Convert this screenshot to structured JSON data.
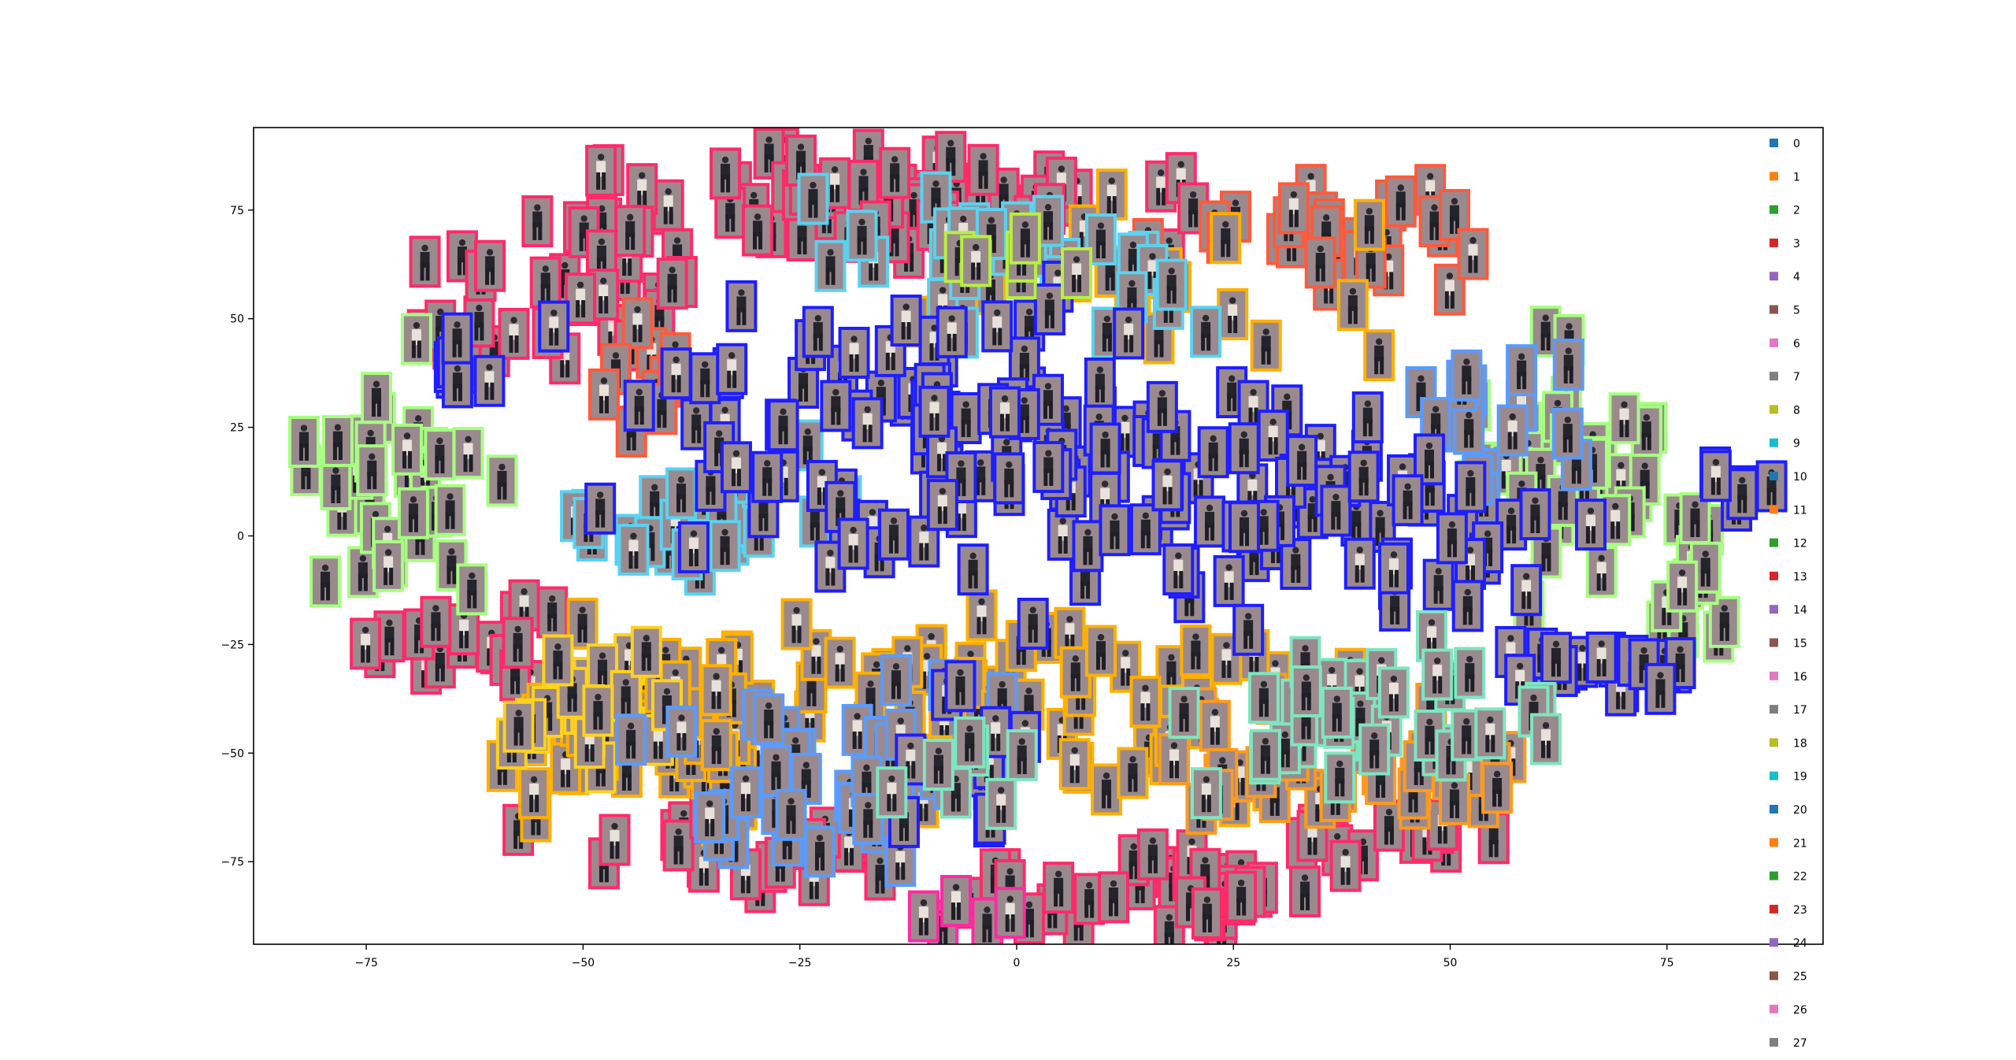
{
  "chart_data": {
    "type": "scatter",
    "title": "",
    "xlabel": "",
    "ylabel": "",
    "xlim": [
      -88,
      93
    ],
    "ylim": [
      -94,
      94
    ],
    "xticks": [
      -75,
      -50,
      -25,
      0,
      25,
      50,
      75
    ],
    "yticks": [
      -75,
      -50,
      -25,
      0,
      25,
      50,
      75
    ],
    "xtick_labels": [
      "−75",
      "−50",
      "−25",
      "0",
      "25",
      "50",
      "75"
    ],
    "ytick_labels": [
      "−75",
      "−50",
      "−25",
      "0",
      "25",
      "50",
      "75"
    ],
    "grid": false,
    "legend_position": "right",
    "legend": [
      {
        "label": "0",
        "color": "#1f77b4"
      },
      {
        "label": "1",
        "color": "#ff7f0e"
      },
      {
        "label": "2",
        "color": "#2ca02c"
      },
      {
        "label": "3",
        "color": "#d62728"
      },
      {
        "label": "4",
        "color": "#9467bd"
      },
      {
        "label": "5",
        "color": "#8c564b"
      },
      {
        "label": "6",
        "color": "#e377c2"
      },
      {
        "label": "7",
        "color": "#7f7f7f"
      },
      {
        "label": "8",
        "color": "#bcbd22"
      },
      {
        "label": "9",
        "color": "#17becf"
      },
      {
        "label": "10",
        "color": "#1f77b4"
      },
      {
        "label": "11",
        "color": "#ff7f0e"
      },
      {
        "label": "12",
        "color": "#2ca02c"
      },
      {
        "label": "13",
        "color": "#d62728"
      },
      {
        "label": "14",
        "color": "#9467bd"
      },
      {
        "label": "15",
        "color": "#8c564b"
      },
      {
        "label": "16",
        "color": "#e377c2"
      },
      {
        "label": "17",
        "color": "#7f7f7f"
      },
      {
        "label": "18",
        "color": "#bcbd22"
      },
      {
        "label": "19",
        "color": "#17becf"
      },
      {
        "label": "20",
        "color": "#1f77b4"
      },
      {
        "label": "21",
        "color": "#ff7f0e"
      },
      {
        "label": "22",
        "color": "#2ca02c"
      },
      {
        "label": "23",
        "color": "#d62728"
      },
      {
        "label": "24",
        "color": "#9467bd"
      },
      {
        "label": "25",
        "color": "#8c564b"
      },
      {
        "label": "26",
        "color": "#e377c2"
      },
      {
        "label": "27",
        "color": "#7f7f7f"
      }
    ],
    "clusters": [
      {
        "color": "#ff2a6a",
        "center": [
          -12,
          76
        ],
        "spread": [
          26,
          10
        ],
        "count": 70
      },
      {
        "color": "#ff2a6a",
        "center": [
          -46,
          52
        ],
        "spread": [
          8,
          18
        ],
        "count": 24
      },
      {
        "color": "#ff2a6a",
        "center": [
          -63,
          -24
        ],
        "spread": [
          8,
          8
        ],
        "count": 18
      },
      {
        "color": "#ff2a6a",
        "center": [
          -35,
          -70
        ],
        "spread": [
          14,
          8
        ],
        "count": 22
      },
      {
        "color": "#ff2a6a",
        "center": [
          20,
          -80
        ],
        "spread": [
          12,
          8
        ],
        "count": 26
      },
      {
        "color": "#ff2a6a",
        "center": [
          45,
          -70
        ],
        "spread": [
          12,
          8
        ],
        "count": 18
      },
      {
        "color": "#ff2a6a",
        "center": [
          2,
          -82
        ],
        "spread": [
          8,
          6
        ],
        "count": 10
      },
      {
        "color": "#ff2a6a",
        "center": [
          -62,
          52
        ],
        "spread": [
          8,
          16
        ],
        "count": 12
      },
      {
        "color": "#ff5a3c",
        "center": [
          37,
          70
        ],
        "spread": [
          14,
          10
        ],
        "count": 28
      },
      {
        "color": "#ff5a3c",
        "center": [
          -42,
          35
        ],
        "spread": [
          5,
          10
        ],
        "count": 10
      },
      {
        "color": "#a6ff80",
        "center": [
          -72,
          12
        ],
        "spread": [
          9,
          22
        ],
        "count": 34
      },
      {
        "color": "#a6ff80",
        "center": [
          62,
          20
        ],
        "spread": [
          10,
          28
        ],
        "count": 36
      },
      {
        "color": "#a6ff80",
        "center": [
          78,
          -10
        ],
        "spread": [
          6,
          14
        ],
        "count": 14
      },
      {
        "color": "#ffb000",
        "center": [
          -45,
          -45
        ],
        "spread": [
          14,
          18
        ],
        "count": 60
      },
      {
        "color": "#ffb000",
        "center": [
          0,
          -40
        ],
        "spread": [
          28,
          18
        ],
        "count": 70
      },
      {
        "color": "#ffb000",
        "center": [
          15,
          60
        ],
        "spread": [
          25,
          15
        ],
        "count": 22
      },
      {
        "color": "#ffd21e",
        "center": [
          -50,
          -40
        ],
        "spread": [
          8,
          12
        ],
        "count": 22
      },
      {
        "color": "#ff9a1e",
        "center": [
          30,
          -55
        ],
        "spread": [
          12,
          12
        ],
        "count": 22
      },
      {
        "color": "#ff9a1e",
        "center": [
          50,
          -55
        ],
        "spread": [
          8,
          10
        ],
        "count": 14
      },
      {
        "color": "#5a9bff",
        "center": [
          -20,
          -55
        ],
        "spread": [
          16,
          15
        ],
        "count": 40
      },
      {
        "color": "#5a9bff",
        "center": [
          55,
          30
        ],
        "spread": [
          8,
          15
        ],
        "count": 16
      },
      {
        "color": "#5ad2f0",
        "center": [
          -35,
          5
        ],
        "spread": [
          14,
          10
        ],
        "count": 30
      },
      {
        "color": "#5ad2f0",
        "center": [
          0,
          65
        ],
        "spread": [
          20,
          12
        ],
        "count": 28
      },
      {
        "color": "#1e1eff",
        "center": [
          -5,
          20
        ],
        "spread": [
          32,
          25
        ],
        "count": 130
      },
      {
        "color": "#1e1eff",
        "center": [
          40,
          5
        ],
        "spread": [
          18,
          20
        ],
        "count": 50
      },
      {
        "color": "#1e1eff",
        "center": [
          65,
          -30
        ],
        "spread": [
          8,
          5
        ],
        "count": 20
      },
      {
        "color": "#1e1eff",
        "center": [
          -5,
          -50
        ],
        "spread": [
          6,
          14
        ],
        "count": 14
      },
      {
        "color": "#1e1eff",
        "center": [
          83,
          10
        ],
        "spread": [
          3,
          5
        ],
        "count": 6
      },
      {
        "color": "#1e1eff",
        "center": [
          -63,
          38
        ],
        "spread": [
          4,
          10
        ],
        "count": 6
      },
      {
        "color": "#7ee6c0",
        "center": [
          40,
          -40
        ],
        "spread": [
          16,
          14
        ],
        "count": 36
      },
      {
        "color": "#7ee6c0",
        "center": [
          -8,
          -55
        ],
        "spread": [
          8,
          8
        ],
        "count": 8
      },
      {
        "color": "#b8f040",
        "center": [
          0,
          60
        ],
        "spread": [
          8,
          6
        ],
        "count": 6
      },
      {
        "color": "#ff2aa0",
        "center": [
          -5,
          -88
        ],
        "spread": [
          6,
          3
        ],
        "count": 6
      }
    ]
  }
}
